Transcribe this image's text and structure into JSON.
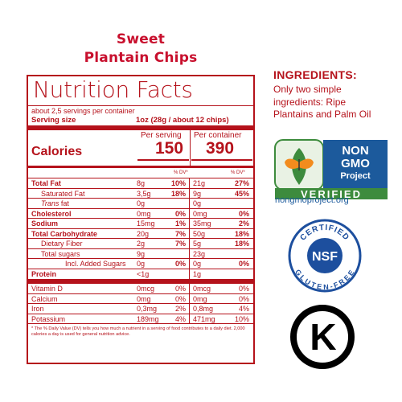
{
  "product": {
    "title_line1": "Sweet",
    "title_line2": "Plantain Chips"
  },
  "label": {
    "heading": "Nutrition Facts",
    "servings_text": "about 2,5 servings per container",
    "serving_size_label": "Serving size",
    "serving_size_value": "1oz (28g / about 12 chips)",
    "col1_header": "Per serving",
    "col2_header": "Per container",
    "calories_label": "Calories",
    "calories_serving": "150",
    "calories_container": "390",
    "dv_header": "% DV*",
    "rows": [
      {
        "name": "Total Fat",
        "a1": "8g",
        "p1": "10%",
        "a2": "21g",
        "p2": "27%",
        "bold": true
      },
      {
        "name": "Saturated Fat",
        "a1": "3,5g",
        "p1": "18%",
        "a2": "9g",
        "p2": "45%"
      },
      {
        "name_italic": "Trans",
        "name_rest": " fat",
        "a1": "0g",
        "p1": "",
        "a2": "0g",
        "p2": ""
      },
      {
        "name": "Cholesterol",
        "a1": "0mg",
        "p1": "0%",
        "a2": "0mg",
        "p2": "0%",
        "bold": true
      },
      {
        "name": "Sodium",
        "a1": "15mg",
        "p1": "1%",
        "a2": "35mg",
        "p2": "2%",
        "bold": true
      },
      {
        "name": "Total Carbohydrate",
        "a1": "20g",
        "p1": "7%",
        "a2": "50g",
        "p2": "18%",
        "bold": true
      },
      {
        "name": "Dietary Fiber",
        "a1": "2g",
        "p1": "7%",
        "a2": "5g",
        "p2": "18%"
      },
      {
        "name": "Total sugars",
        "a1": "9g",
        "p1": "",
        "a2": "23g",
        "p2": ""
      },
      {
        "name": "Incl. Added Sugars",
        "a1": "0g",
        "p1": "0%",
        "a2": "0g",
        "p2": "0%"
      },
      {
        "name": "Protein",
        "a1": "<1g",
        "p1": "",
        "a2": "1g",
        "p2": "",
        "bold": true
      }
    ],
    "vitamins": [
      {
        "name": "Vitamin D",
        "a1": "0mcg",
        "p1": "0%",
        "a2": "0mcg",
        "p2": "0%"
      },
      {
        "name": "Calcium",
        "a1": "0mg",
        "p1": "0%",
        "a2": "0mg",
        "p2": "0%"
      },
      {
        "name": "Iron",
        "a1": "0,3mg",
        "p1": "2%",
        "a2": "0,8mg",
        "p2": "4%"
      },
      {
        "name": "Potassium",
        "a1": "189mg",
        "p1": "4%",
        "a2": "471mg",
        "p2": "10%"
      }
    ],
    "footnote": "* The % Daily Value (DV) tells you how much a nutrient in a serving of food contributes to a daily diet. 2,000 calories a day is used for general nutrition advice."
  },
  "ingredients": {
    "heading": "INGREDIENTS:",
    "text": "Only two simple ingredients: Ripe Plantains and Palm Oil"
  },
  "badges": {
    "nongmo_line1": "NON",
    "nongmo_line2": "GMO",
    "nongmo_line3": "Project",
    "nongmo_verified": "VERIFIED",
    "nongmo_url": "nongmoproject.org",
    "nsf_top": "CERTIFIED",
    "nsf_mid": "NSF",
    "nsf_bottom": "GLUTEN-FREE",
    "kosher_letter": "K"
  },
  "colors": {
    "brand_red": "#b5121b",
    "title_red": "#c8102e",
    "nongmo_blue": "#1c5a9c",
    "nongmo_green": "#3d8b3d",
    "nsf_blue": "#1d4f9e"
  }
}
